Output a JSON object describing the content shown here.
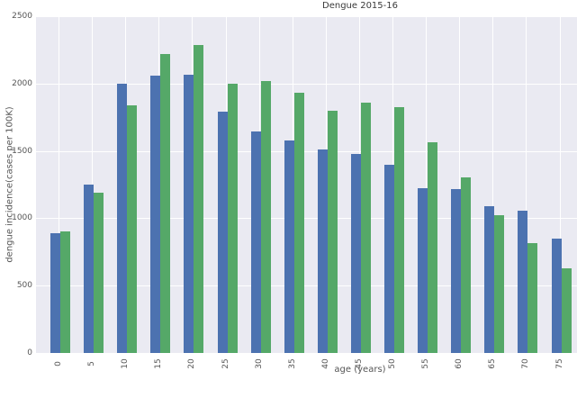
{
  "title": "Dengue 2015-16",
  "chart_data": {
    "type": "bar",
    "title": "Dengue 2015-16",
    "xlabel": "age (years)",
    "ylabel": "dengue incidence(cases per 100K)",
    "categories": [
      "0",
      "5",
      "10",
      "15",
      "20",
      "25",
      "30",
      "35",
      "40",
      "45",
      "50",
      "55",
      "60",
      "65",
      "70",
      "75"
    ],
    "series": [
      {
        "name": "blue-series",
        "color": "#4C72B0",
        "values": [
          890,
          1250,
          2000,
          2060,
          2065,
          1790,
          1645,
          1580,
          1510,
          1475,
          1395,
          1225,
          1215,
          1090,
          1055,
          850
        ]
      },
      {
        "name": "green-series",
        "color": "#55A868",
        "values": [
          900,
          1190,
          1840,
          2220,
          2285,
          2000,
          2020,
          1930,
          1800,
          1860,
          1825,
          1565,
          1305,
          1025,
          815,
          630
        ]
      }
    ],
    "ylim": [
      0,
      2500
    ],
    "yticks": [
      0,
      500,
      1000,
      1500,
      2000,
      2500
    ],
    "grid": true,
    "legend": "none",
    "plot_bg": "#EAEAF2",
    "grid_color": "#FFFFFF",
    "figure_bg": "#FFFFFF",
    "text_color": "#555555"
  }
}
